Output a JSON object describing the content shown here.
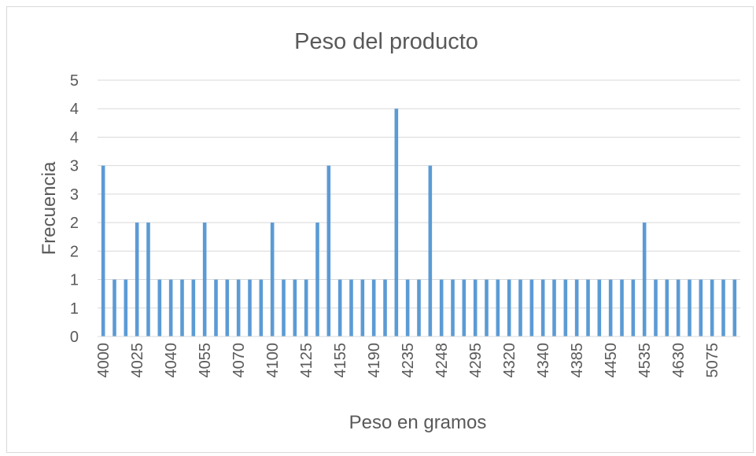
{
  "chart_data": {
    "type": "bar",
    "title": "Peso del producto",
    "xlabel": "Peso en gramos",
    "ylabel": "Frecuencia",
    "ylim": [
      0,
      4.5
    ],
    "y_tick_labels": [
      "0",
      "1",
      "1",
      "2",
      "2",
      "3",
      "3",
      "4",
      "4",
      "5"
    ],
    "bar_color": "#5b9bd5",
    "grid": true,
    "x_tick_labels": [
      "4000",
      "4025",
      "4040",
      "4055",
      "4070",
      "4100",
      "4125",
      "4155",
      "4190",
      "4235",
      "4248",
      "4295",
      "4320",
      "4340",
      "4385",
      "4450",
      "4535",
      "4630",
      "5075"
    ],
    "values": [
      3,
      1,
      1,
      2,
      2,
      1,
      1,
      1,
      1,
      2,
      1,
      1,
      1,
      1,
      1,
      2,
      1,
      1,
      1,
      2,
      3,
      1,
      1,
      1,
      1,
      1,
      4,
      1,
      1,
      3,
      1,
      1,
      1,
      1,
      1,
      1,
      1,
      1,
      1,
      1,
      1,
      1,
      1,
      1,
      1,
      1,
      1,
      1,
      2,
      1,
      1,
      1,
      1,
      1,
      1,
      1,
      1
    ]
  }
}
